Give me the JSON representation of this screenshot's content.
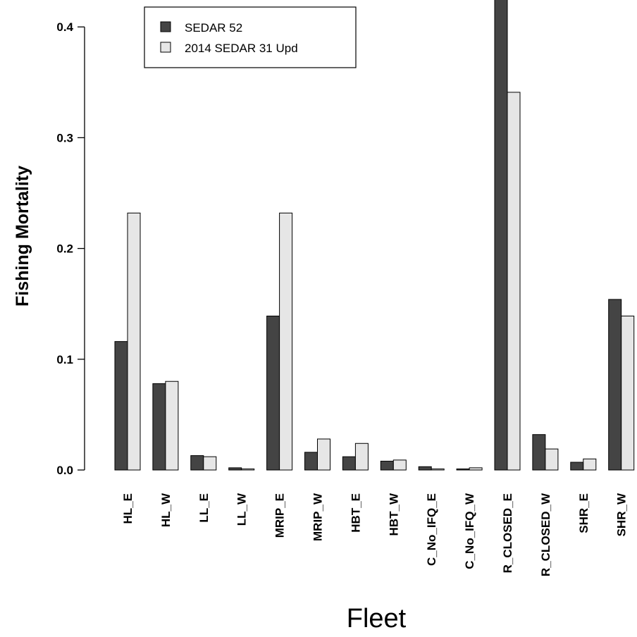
{
  "chart_data": {
    "type": "bar",
    "xlabel": "Fleet",
    "ylabel": "Fishing Mortality",
    "ylim": [
      0,
      0.4
    ],
    "yticks": [
      "0.0",
      "0.1",
      "0.2",
      "0.3",
      "0.4"
    ],
    "categories": [
      "HL_E",
      "HL_W",
      "LL_E",
      "LL_W",
      "MRIP_E",
      "MRIP_W",
      "HBT_E",
      "HBT_W",
      "C_No_IFQ_E",
      "C_No_IFQ_W",
      "R_CLOSED_E",
      "R_CLOSED_W",
      "SHR_E",
      "SHR_W"
    ],
    "series": [
      {
        "name": "SEDAR 52",
        "color": "#444444",
        "values": [
          0.116,
          0.078,
          0.013,
          0.002,
          0.139,
          0.016,
          0.012,
          0.008,
          0.003,
          0.001,
          0.43,
          0.032,
          0.007,
          0.154
        ]
      },
      {
        "name": "2014 SEDAR 31 Upd",
        "color": "#e6e6e6",
        "values": [
          0.232,
          0.08,
          0.012,
          0.001,
          0.232,
          0.028,
          0.024,
          0.009,
          0.001,
          0.002,
          0.341,
          0.019,
          0.01,
          0.139
        ]
      }
    ],
    "legend": "top-left",
    "grid": false
  }
}
